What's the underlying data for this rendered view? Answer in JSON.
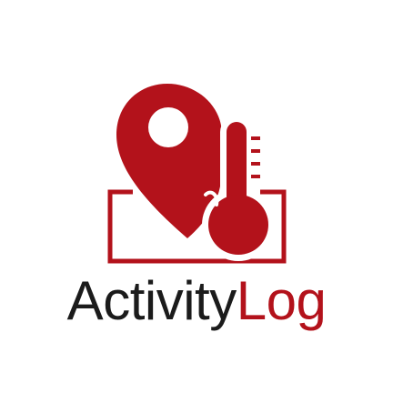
{
  "logo": {
    "name_part1": "Activity",
    "name_part2": "Log",
    "colors": {
      "dark": "#1b1b1b",
      "red": "#b3121b",
      "red_dark": "#8f0d14",
      "background": "#ffffff"
    },
    "icons": [
      "map-pin-icon",
      "thermometer-icon",
      "bracket-frame"
    ]
  }
}
